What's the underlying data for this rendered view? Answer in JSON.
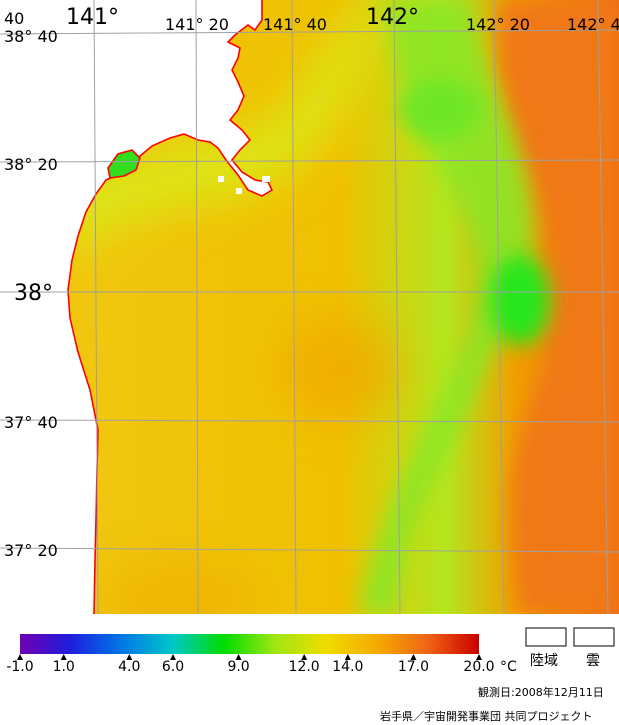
{
  "map": {
    "lon_labels": [
      {
        "text": "141°",
        "big": true
      },
      {
        "text": "141° 20",
        "big": false
      },
      {
        "text": "141° 40",
        "big": false
      },
      {
        "text": "142°",
        "big": true
      },
      {
        "text": "142° 20",
        "big": false
      },
      {
        "text": "142° 4",
        "big": false
      },
      {
        "text": "40",
        "big": false
      }
    ],
    "lat_labels": [
      {
        "text": "38° 40",
        "big": false
      },
      {
        "text": "38° 20",
        "big": false
      },
      {
        "text": "38°",
        "big": true
      },
      {
        "text": "37° 40",
        "big": false
      },
      {
        "text": "37° 20",
        "big": false
      }
    ],
    "colors": {
      "land": "#ffffff",
      "coast": "#ff0000",
      "grid": "#a0a0a0",
      "sea_cool": "#32e61e",
      "sea_mid": "#d2e614",
      "sea_warm": "#f5b400",
      "sea_hot": "#f06e14"
    }
  },
  "legend": {
    "gradient_stops": [
      "#6e00b4",
      "#1e1edc",
      "#0078e6",
      "#00c8c8",
      "#00dc00",
      "#a0e614",
      "#f0dc00",
      "#f5aa00",
      "#f06414",
      "#c80000"
    ],
    "ticks": [
      "-1.0",
      "1.0",
      "4.0",
      "6.0",
      "9.0",
      "12.0",
      "14.0",
      "17.0",
      "20.0"
    ],
    "unit": "°C",
    "land_label": "陸域",
    "cloud_label": "雲"
  },
  "footer": {
    "observation_date": "観測日:2008年12月11日",
    "credit": "岩手県／宇宙開発事業団 共同プロジェクト"
  }
}
